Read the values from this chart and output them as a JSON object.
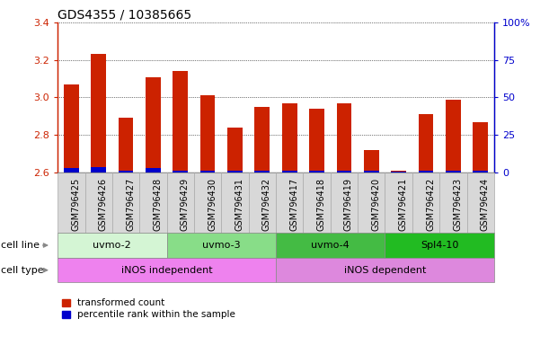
{
  "title": "GDS4355 / 10385665",
  "samples": [
    "GSM796425",
    "GSM796426",
    "GSM796427",
    "GSM796428",
    "GSM796429",
    "GSM796430",
    "GSM796431",
    "GSM796432",
    "GSM796417",
    "GSM796418",
    "GSM796419",
    "GSM796420",
    "GSM796421",
    "GSM796422",
    "GSM796423",
    "GSM796424"
  ],
  "red_values": [
    3.07,
    3.23,
    2.89,
    3.11,
    3.14,
    3.01,
    2.84,
    2.95,
    2.97,
    2.94,
    2.97,
    2.72,
    2.61,
    2.91,
    2.99,
    2.87
  ],
  "blue_values": [
    0.025,
    0.028,
    0.01,
    0.025,
    0.01,
    0.01,
    0.01,
    0.01,
    0.01,
    0.01,
    0.01,
    0.01,
    0.005,
    0.01,
    0.01,
    0.01
  ],
  "ylim": [
    2.6,
    3.4
  ],
  "y_ticks": [
    2.6,
    2.8,
    3.0,
    3.2,
    3.4
  ],
  "y2_ticks": [
    0,
    25,
    50,
    75,
    100
  ],
  "y2_tick_labels": [
    "0",
    "25",
    "50",
    "75",
    "100%"
  ],
  "bar_bottom": 2.6,
  "cell_line_groups": [
    {
      "label": "uvmo-2",
      "start": 0,
      "end": 4,
      "color": "#d4f5d4"
    },
    {
      "label": "uvmo-3",
      "start": 4,
      "end": 8,
      "color": "#88dd88"
    },
    {
      "label": "uvmo-4",
      "start": 8,
      "end": 12,
      "color": "#44bb44"
    },
    {
      "label": "Spl4-10",
      "start": 12,
      "end": 16,
      "color": "#22bb22"
    }
  ],
  "cell_type_groups": [
    {
      "label": "iNOS independent",
      "start": 0,
      "end": 8,
      "color": "#ee82ee"
    },
    {
      "label": "iNOS dependent",
      "start": 8,
      "end": 16,
      "color": "#dd88dd"
    }
  ],
  "red_color": "#cc2200",
  "blue_color": "#0000cc",
  "axis_color_left": "#cc2200",
  "axis_color_right": "#0000cc",
  "bar_width": 0.55,
  "legend_red": "transformed count",
  "legend_blue": "percentile rank within the sample",
  "cell_line_row_label": "cell line",
  "cell_type_row_label": "cell type",
  "xticklabel_fontsize": 7,
  "yticklabel_fontsize": 8,
  "title_fontsize": 10,
  "xtick_bg_color": "#d8d8d8",
  "figure_bg": "#ffffff"
}
